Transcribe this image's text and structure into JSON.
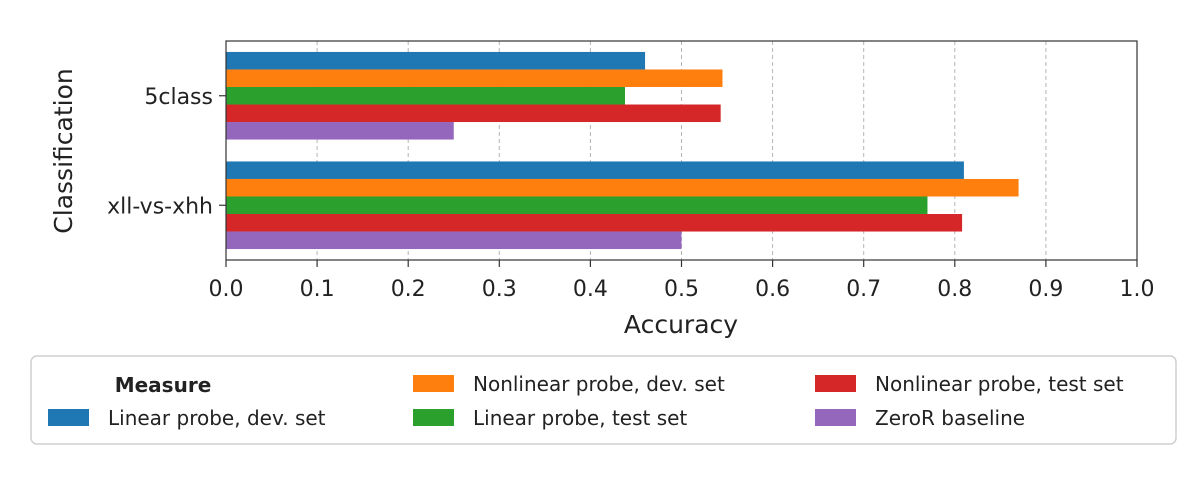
{
  "chart_data": {
    "type": "bar",
    "orientation": "horizontal",
    "categories": [
      "5class",
      "xll-vs-xhh"
    ],
    "series": [
      {
        "name": "Linear probe, dev. set",
        "color": "#1f77b4",
        "values": [
          0.46,
          0.81
        ]
      },
      {
        "name": "Nonlinear probe, dev. set",
        "color": "#ff7f0e",
        "values": [
          0.545,
          0.87
        ]
      },
      {
        "name": "Linear probe, test set",
        "color": "#2ca02c",
        "values": [
          0.438,
          0.77
        ]
      },
      {
        "name": "Nonlinear probe, test set",
        "color": "#d62728",
        "values": [
          0.543,
          0.808
        ]
      },
      {
        "name": "ZeroR baseline",
        "color": "#9467bd",
        "values": [
          0.25,
          0.5
        ]
      }
    ],
    "xlabel": "Accuracy",
    "ylabel": "Classification",
    "xlim": [
      0.0,
      1.0
    ],
    "xticks": [
      "0.0",
      "0.1",
      "0.2",
      "0.3",
      "0.4",
      "0.5",
      "0.6",
      "0.7",
      "0.8",
      "0.9",
      "1.0"
    ],
    "grid": "vertical dashed",
    "legend": {
      "title": "Measure",
      "placement": "below",
      "entries": [
        "Linear probe, dev. set",
        "Nonlinear probe, dev. set",
        "Linear probe, test set",
        "Nonlinear probe, test set",
        "ZeroR baseline"
      ]
    }
  }
}
